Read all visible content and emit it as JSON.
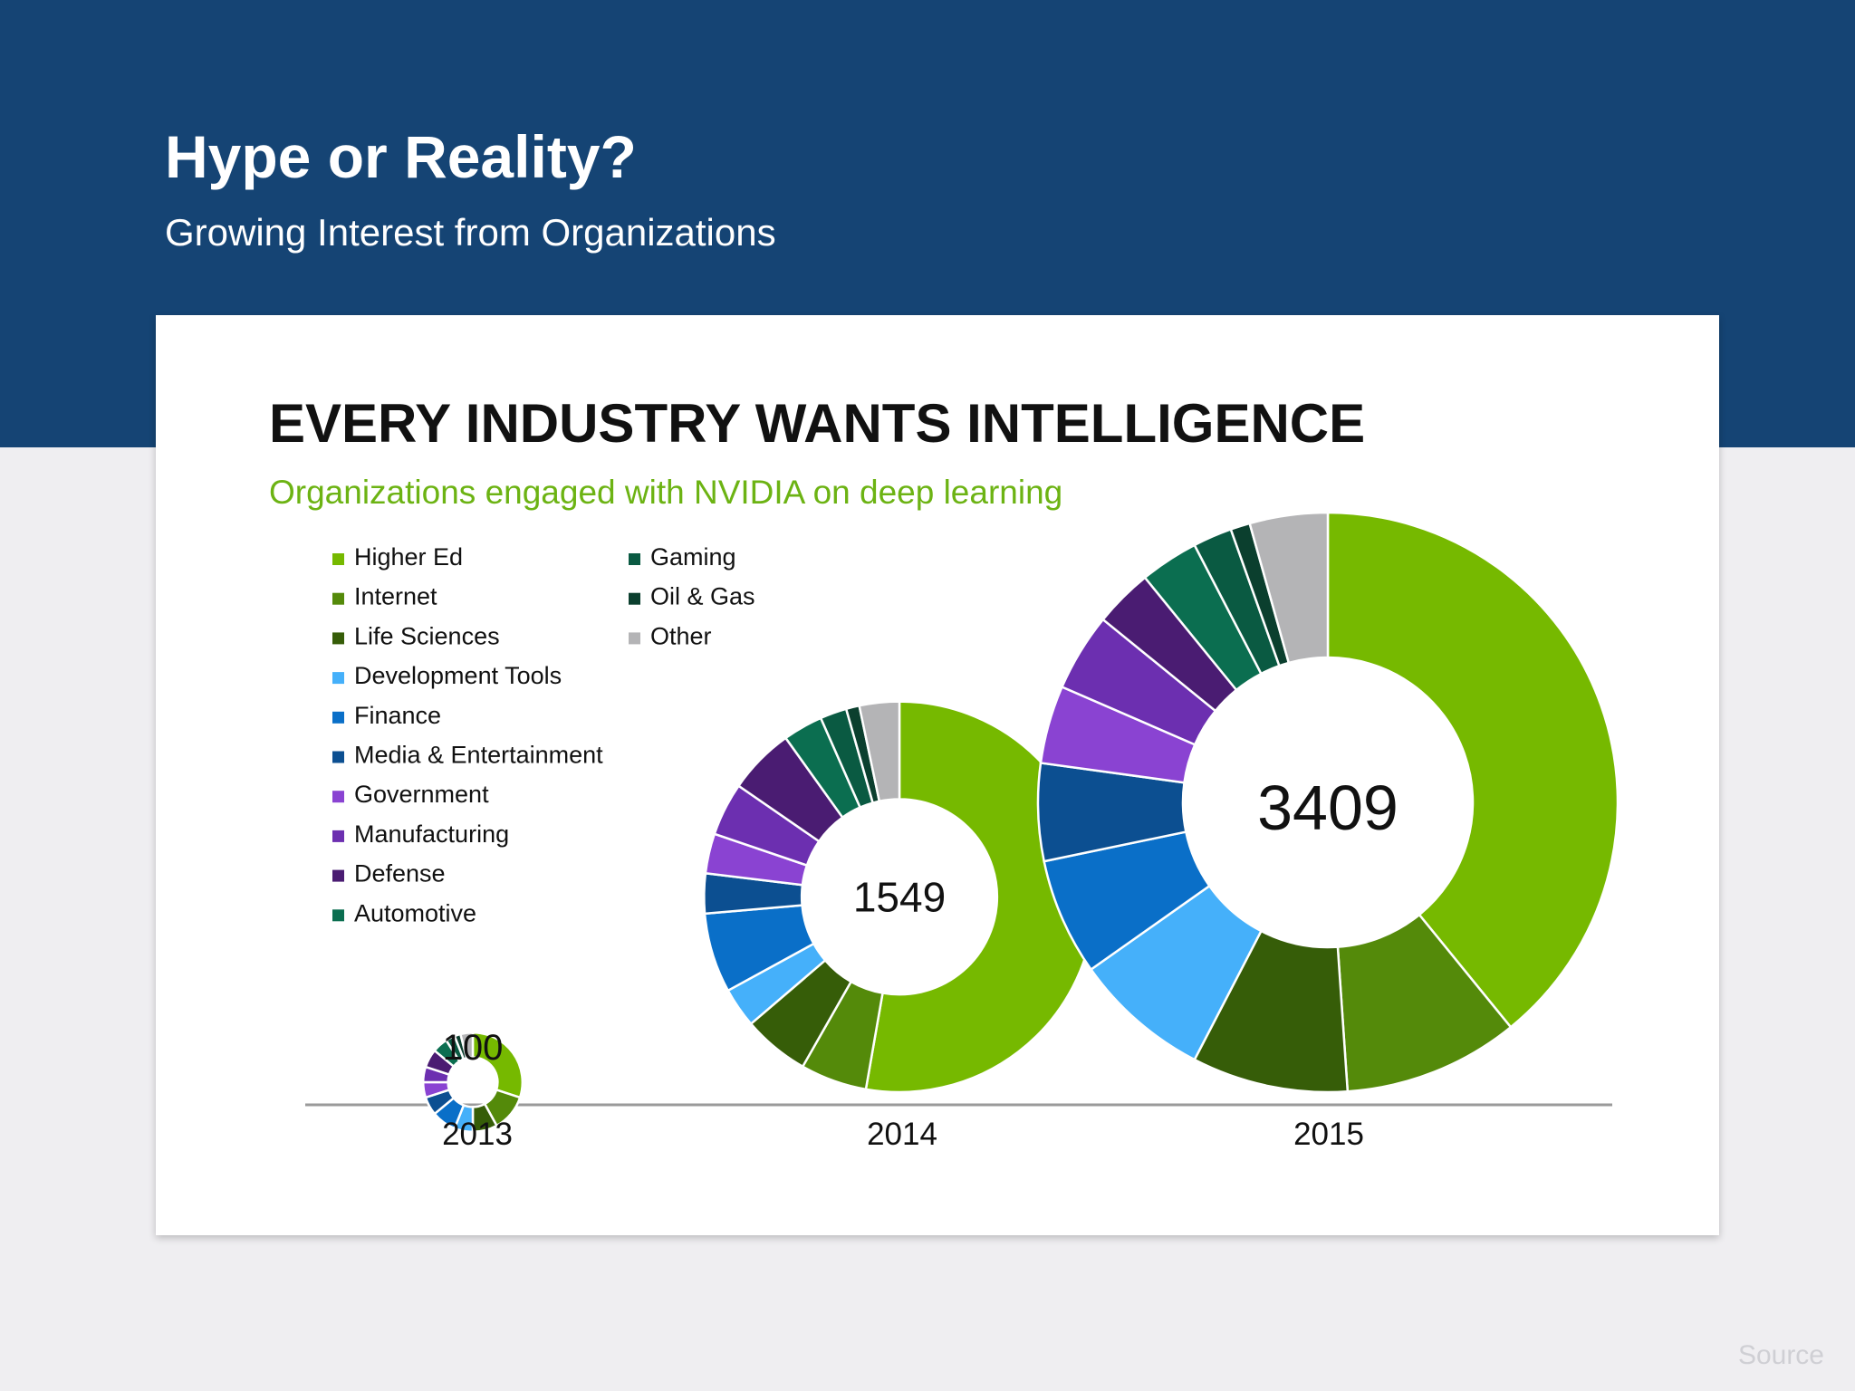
{
  "header": {
    "title": "Hype or Reality?",
    "subtitle": "Growing Interest from Organizations",
    "background_color": "#154474"
  },
  "footer": {
    "source_label": "Source"
  },
  "chart_data": {
    "type": "donut",
    "title": "EVERY INDUSTRY WANTS INTELLIGENCE",
    "subtitle": "Organizations engaged with NVIDIA on deep learning",
    "legend_position": "top-left",
    "categories": [
      "Higher Ed",
      "Internet",
      "Life Sciences",
      "Development Tools",
      "Finance",
      "Media & Entertainment",
      "Government",
      "Manufacturing",
      "Defense",
      "Automotive",
      "Gaming",
      "Oil & Gas",
      "Other"
    ],
    "colors": [
      "#76b900",
      "#548a0a",
      "#365d08",
      "#45b0fa",
      "#0a6fc8",
      "#0c4f91",
      "#8a43d2",
      "#6c2fb0",
      "#4a1c72",
      "#0b6e50",
      "#0a5a42",
      "#0b3f2e",
      "#b4b4b6"
    ],
    "series": [
      {
        "name": "2013",
        "total": 100,
        "values": [
          30,
          12,
          8,
          6,
          8,
          6,
          5,
          5,
          6,
          5,
          3,
          2,
          4
        ]
      },
      {
        "name": "2014",
        "total": 1549,
        "values": [
          48,
          5,
          5,
          3,
          6,
          3,
          3,
          4,
          5,
          3,
          2,
          1,
          3
        ]
      },
      {
        "name": "2015",
        "total": 3409,
        "values": [
          36,
          9,
          8,
          7,
          6,
          5,
          4,
          4,
          3,
          3,
          2,
          1,
          4
        ]
      }
    ]
  }
}
